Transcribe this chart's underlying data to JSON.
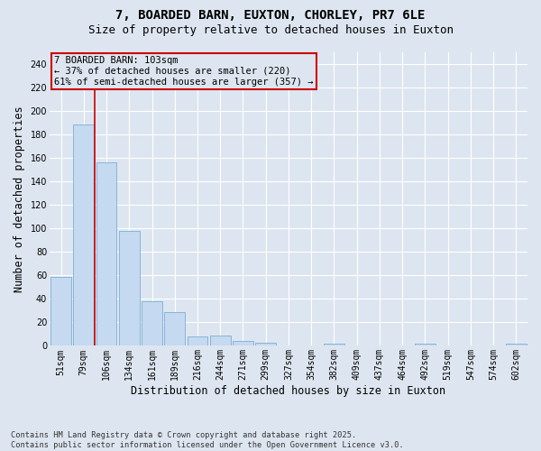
{
  "title": "7, BOARDED BARN, EUXTON, CHORLEY, PR7 6LE",
  "subtitle": "Size of property relative to detached houses in Euxton",
  "xlabel": "Distribution of detached houses by size in Euxton",
  "ylabel": "Number of detached properties",
  "categories": [
    "51sqm",
    "79sqm",
    "106sqm",
    "134sqm",
    "161sqm",
    "189sqm",
    "216sqm",
    "244sqm",
    "271sqm",
    "299sqm",
    "327sqm",
    "354sqm",
    "382sqm",
    "409sqm",
    "437sqm",
    "464sqm",
    "492sqm",
    "519sqm",
    "547sqm",
    "574sqm",
    "602sqm"
  ],
  "values": [
    59,
    188,
    156,
    98,
    38,
    29,
    8,
    9,
    4,
    3,
    0,
    0,
    2,
    0,
    0,
    0,
    2,
    0,
    0,
    0,
    2
  ],
  "bar_color": "#c5d9f0",
  "bar_edge_color": "#7bafd4",
  "vline_color": "#cc0000",
  "annotation_text": "7 BOARDED BARN: 103sqm\n← 37% of detached houses are smaller (220)\n61% of semi-detached houses are larger (357) →",
  "annotation_box_color": "#cc0000",
  "annotation_fontsize": 7.5,
  "ylim": [
    0,
    250
  ],
  "yticks": [
    0,
    20,
    40,
    60,
    80,
    100,
    120,
    140,
    160,
    180,
    200,
    220,
    240
  ],
  "background_color": "#dde6f0",
  "grid_color": "#ffffff",
  "footer": "Contains HM Land Registry data © Crown copyright and database right 2025.\nContains public sector information licensed under the Open Government Licence v3.0.",
  "title_fontsize": 10,
  "subtitle_fontsize": 9,
  "tick_fontsize": 7,
  "axis_label_fontsize": 8.5
}
